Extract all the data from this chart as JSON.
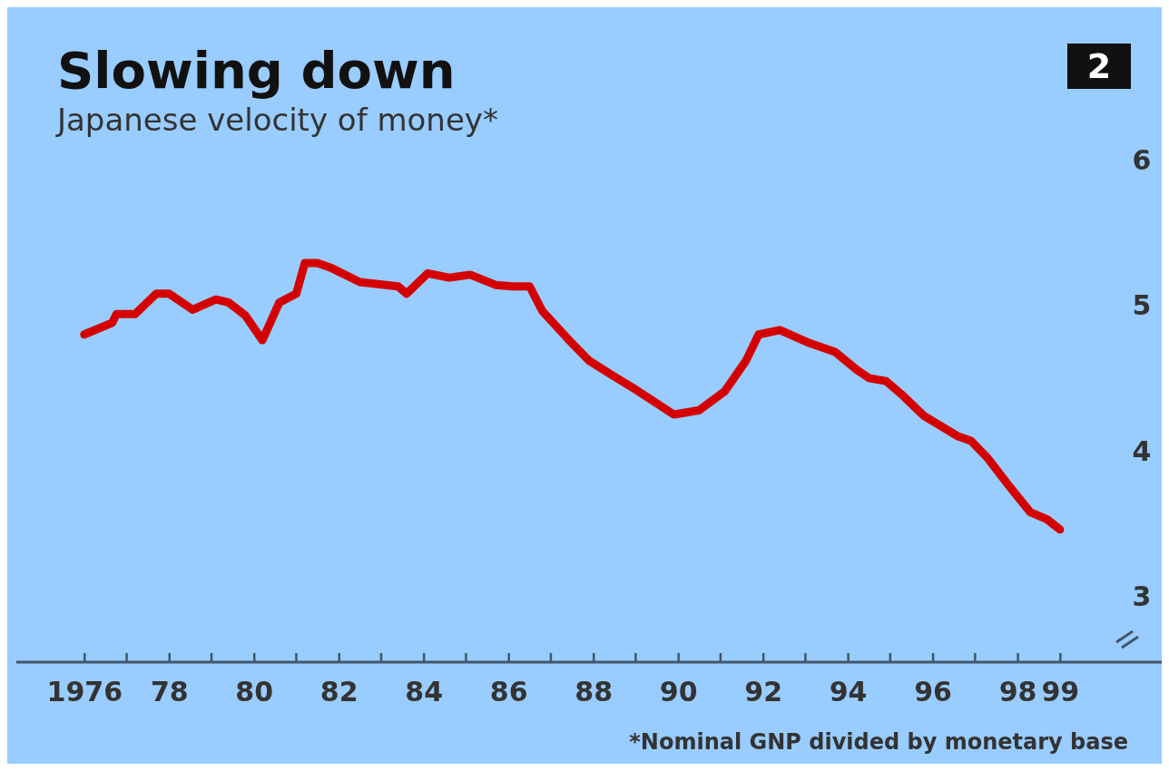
{
  "chart_data": {
    "type": "line",
    "title": "Slowing down",
    "subtitle": "Japanese velocity of money*",
    "annotations": [
      "2",
      "*Nominal GNP divided by monetary base"
    ],
    "series": [
      {
        "color": "#d40000",
        "x": [
          1976,
          1976.66,
          1976.76,
          1977.2,
          1977.7,
          1978.0,
          1978.56,
          1979.1,
          1979.4,
          1979.8,
          1980.2,
          1980.6,
          1981.0,
          1981.2,
          1981.5,
          1981.8,
          1982.5,
          1983.4,
          1983.6,
          1984.1,
          1984.6,
          1985.1,
          1985.7,
          1986.1,
          1986.5,
          1986.8,
          1987.4,
          1987.9,
          1988.5,
          1988.9,
          1989.9,
          1990.5,
          1991.1,
          1991.6,
          1991.9,
          1992.4,
          1993.1,
          1993.7,
          1994.2,
          1994.5,
          1994.9,
          1995.3,
          1995.8,
          1996.6,
          1996.9,
          1997.3,
          1997.8,
          1998.3,
          1998.7,
          1999.0
        ],
        "values": [
          4.8,
          4.88,
          4.94,
          4.94,
          5.08,
          5.08,
          4.97,
          5.04,
          5.02,
          4.93,
          4.76,
          5.02,
          5.08,
          5.29,
          5.29,
          5.26,
          5.16,
          5.13,
          5.08,
          5.22,
          5.19,
          5.21,
          5.14,
          5.13,
          5.13,
          4.96,
          4.77,
          4.62,
          4.51,
          4.44,
          4.25,
          4.28,
          4.41,
          4.62,
          4.8,
          4.83,
          4.74,
          4.68,
          4.56,
          4.5,
          4.48,
          4.38,
          4.24,
          4.1,
          4.07,
          3.95,
          3.76,
          3.58,
          3.53,
          3.46
        ]
      }
    ],
    "xlim": [
      1974.4,
      2001.4
    ],
    "xticks": [
      {
        "value": 1976,
        "label": "1976"
      },
      {
        "value": 1978,
        "label": "78"
      },
      {
        "value": 1980,
        "label": "80"
      },
      {
        "value": 1982,
        "label": "82"
      },
      {
        "value": 1984,
        "label": "84"
      },
      {
        "value": 1986,
        "label": "86"
      },
      {
        "value": 1988,
        "label": "88"
      },
      {
        "value": 1990,
        "label": "90"
      },
      {
        "value": 1992,
        "label": "92"
      },
      {
        "value": 1994,
        "label": "94"
      },
      {
        "value": 1996,
        "label": "96"
      },
      {
        "value": 1998,
        "label": "98"
      },
      {
        "value": 1999,
        "label": "99"
      }
    ],
    "ylim": [
      1.852,
      7.047
    ],
    "yticks": [
      3,
      4,
      5,
      6
    ],
    "grid": false,
    "marker": "none",
    "line_style": "solid"
  }
}
